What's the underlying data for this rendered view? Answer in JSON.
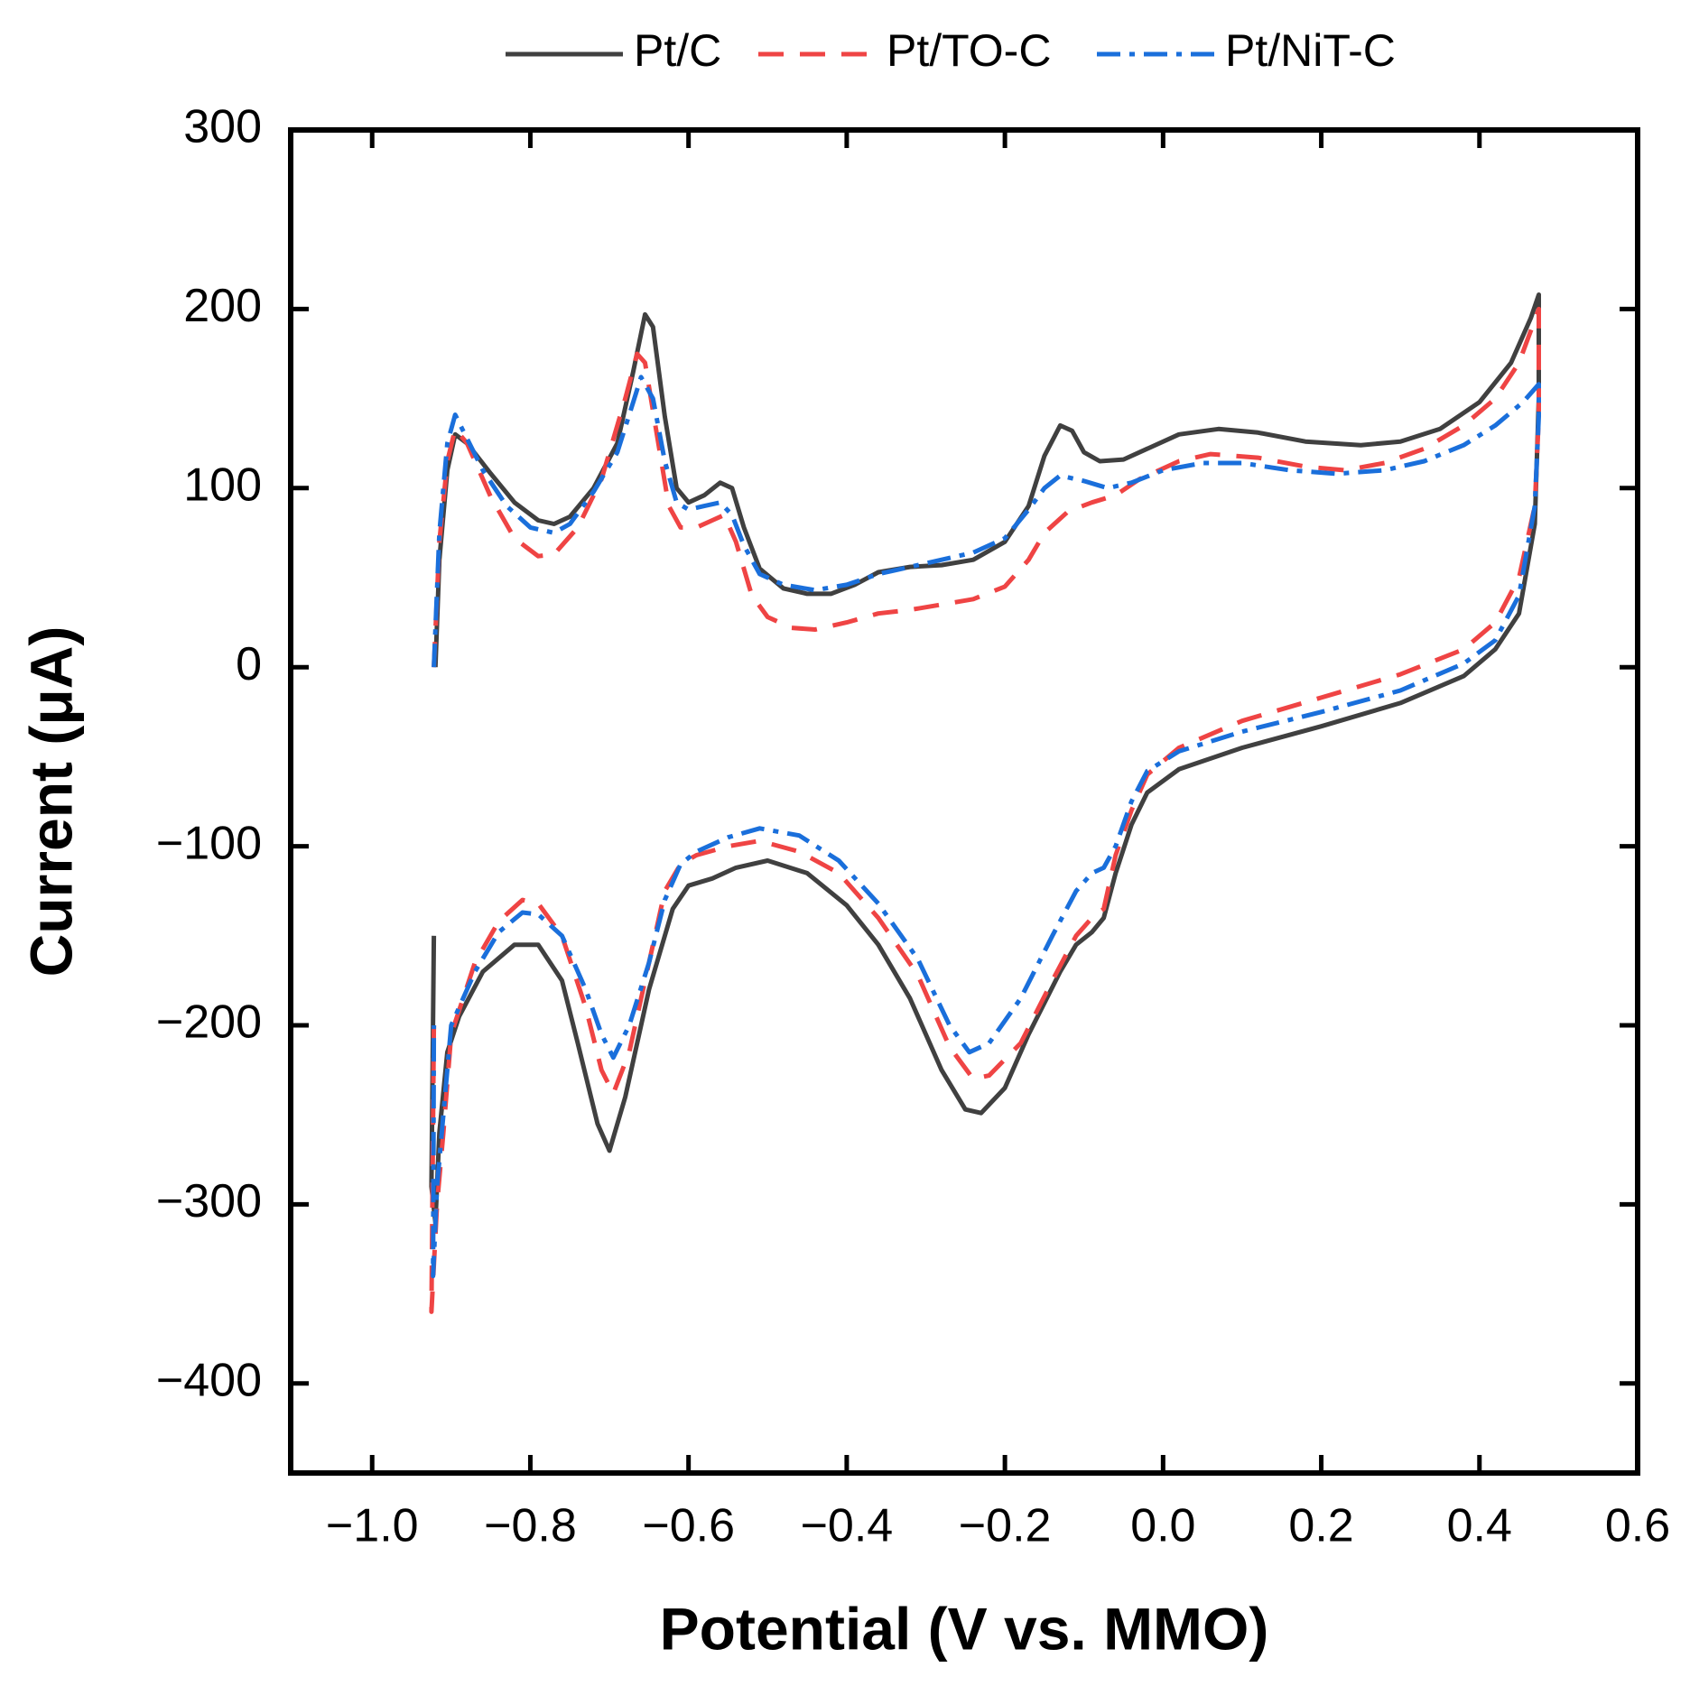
{
  "chart_data": {
    "type": "line",
    "xlabel": "Potential (V vs. MMO)",
    "ylabel": "Current (μA)",
    "xlim": [
      -1.103,
      0.6
    ],
    "ylim": [
      -450,
      300
    ],
    "xticks": [
      {
        "value": -1.0,
        "label": "−1.0"
      },
      {
        "value": -0.8,
        "label": "−0.8"
      },
      {
        "value": -0.6,
        "label": "−0.6"
      },
      {
        "value": -0.4,
        "label": "−0.4"
      },
      {
        "value": -0.2,
        "label": "−0.2"
      },
      {
        "value": 0,
        "label": "0.0"
      },
      0.2,
      0.4,
      0.6
    ],
    "yticks": [
      {
        "value": -400,
        "label": "−400"
      },
      {
        "value": -300,
        "label": "−300"
      },
      {
        "value": -200,
        "label": "−200"
      },
      {
        "value": -100,
        "label": "−100"
      },
      0,
      100,
      200,
      300
    ],
    "series": [
      {
        "name": "Pt/C",
        "color": "#404040",
        "dash": "none",
        "x": [
          -0.92,
          -0.915,
          -0.905,
          -0.895,
          -0.88,
          -0.85,
          -0.82,
          -0.79,
          -0.77,
          -0.75,
          -0.72,
          -0.69,
          -0.67,
          -0.655,
          -0.645,
          -0.63,
          -0.615,
          -0.6,
          -0.58,
          -0.56,
          -0.545,
          -0.53,
          -0.51,
          -0.48,
          -0.45,
          -0.42,
          -0.39,
          -0.36,
          -0.32,
          -0.28,
          -0.24,
          -0.2,
          -0.17,
          -0.15,
          -0.13,
          -0.115,
          -0.1,
          -0.08,
          -0.05,
          -0.02,
          0.02,
          0.07,
          0.12,
          0.18,
          0.25,
          0.3,
          0.35,
          0.4,
          0.44,
          0.465,
          0.475,
          0.475,
          0.47,
          0.45,
          0.42,
          0.38,
          0.3,
          0.2,
          0.1,
          0.02,
          -0.02,
          -0.04,
          -0.06,
          -0.075,
          -0.09,
          -0.11,
          -0.13,
          -0.17,
          -0.2,
          -0.23,
          -0.25,
          -0.28,
          -0.32,
          -0.36,
          -0.4,
          -0.45,
          -0.5,
          -0.54,
          -0.57,
          -0.6,
          -0.62,
          -0.65,
          -0.68,
          -0.7,
          -0.715,
          -0.74,
          -0.76,
          -0.79,
          -0.82,
          -0.86,
          -0.89,
          -0.905,
          -0.915,
          -0.92,
          -0.925,
          -0.922
        ],
        "values": [
          0,
          60,
          110,
          130,
          125,
          108,
          92,
          82,
          80,
          84,
          100,
          125,
          165,
          197,
          190,
          140,
          100,
          92,
          96,
          103,
          100,
          78,
          55,
          44,
          41,
          41,
          46,
          53,
          56,
          57,
          60,
          70,
          90,
          118,
          135,
          132,
          120,
          115,
          116,
          122,
          130,
          133,
          131,
          126,
          124,
          126,
          133,
          148,
          170,
          195,
          208,
          150,
          80,
          30,
          10,
          -5,
          -20,
          -33,
          -45,
          -57,
          -70,
          -88,
          -115,
          -140,
          -148,
          -155,
          -170,
          -205,
          -235,
          -249,
          -247,
          -225,
          -185,
          -155,
          -133,
          -115,
          -108,
          -112,
          -118,
          -122,
          -135,
          -180,
          -240,
          -270,
          -255,
          -210,
          -175,
          -155,
          -155,
          -170,
          -195,
          -215,
          -260,
          -310,
          -290,
          -150
        ]
      },
      {
        "name": "Pt/TO-C",
        "color": "#ef4444",
        "dash": "28 18",
        "x": [
          -0.922,
          -0.915,
          -0.905,
          -0.895,
          -0.88,
          -0.85,
          -0.82,
          -0.79,
          -0.77,
          -0.74,
          -0.71,
          -0.68,
          -0.665,
          -0.655,
          -0.64,
          -0.625,
          -0.61,
          -0.59,
          -0.57,
          -0.555,
          -0.54,
          -0.52,
          -0.5,
          -0.47,
          -0.44,
          -0.4,
          -0.36,
          -0.32,
          -0.28,
          -0.24,
          -0.2,
          -0.17,
          -0.15,
          -0.12,
          -0.09,
          -0.06,
          -0.03,
          0.02,
          0.06,
          0.12,
          0.18,
          0.23,
          0.28,
          0.33,
          0.38,
          0.42,
          0.45,
          0.475,
          0.475,
          0.47,
          0.45,
          0.42,
          0.38,
          0.3,
          0.2,
          0.1,
          0.02,
          -0.02,
          -0.04,
          -0.06,
          -0.075,
          -0.09,
          -0.11,
          -0.14,
          -0.18,
          -0.22,
          -0.24,
          -0.27,
          -0.31,
          -0.36,
          -0.41,
          -0.46,
          -0.51,
          -0.55,
          -0.59,
          -0.61,
          -0.63,
          -0.65,
          -0.675,
          -0.695,
          -0.71,
          -0.73,
          -0.76,
          -0.79,
          -0.81,
          -0.84,
          -0.87,
          -0.9,
          -0.91,
          -0.918,
          -0.925,
          -0.922
        ],
        "values": [
          0,
          70,
          115,
          133,
          125,
          95,
          72,
          62,
          63,
          78,
          105,
          150,
          175,
          170,
          130,
          90,
          78,
          78,
          82,
          85,
          70,
          40,
          28,
          22,
          21,
          25,
          30,
          32,
          35,
          38,
          45,
          60,
          75,
          87,
          92,
          96,
          105,
          115,
          119,
          117,
          112,
          110,
          114,
          122,
          135,
          150,
          170,
          200,
          140,
          90,
          50,
          25,
          10,
          -4,
          -17,
          -30,
          -45,
          -60,
          -80,
          -105,
          -135,
          -140,
          -150,
          -175,
          -210,
          -228,
          -230,
          -212,
          -172,
          -140,
          -115,
          -103,
          -97,
          -100,
          -105,
          -110,
          -125,
          -165,
          -215,
          -238,
          -225,
          -190,
          -150,
          -132,
          -130,
          -142,
          -165,
          -205,
          -260,
          -300,
          -360,
          -200
        ]
      },
      {
        "name": "Pt/NiT-C",
        "color": "#1a6fdb",
        "dash": "26 10 6 10",
        "x": [
          -0.922,
          -0.915,
          -0.905,
          -0.895,
          -0.885,
          -0.86,
          -0.83,
          -0.8,
          -0.77,
          -0.75,
          -0.72,
          -0.69,
          -0.67,
          -0.66,
          -0.645,
          -0.63,
          -0.615,
          -0.6,
          -0.58,
          -0.56,
          -0.545,
          -0.53,
          -0.51,
          -0.48,
          -0.44,
          -0.4,
          -0.36,
          -0.32,
          -0.28,
          -0.24,
          -0.2,
          -0.17,
          -0.15,
          -0.13,
          -0.1,
          -0.07,
          -0.04,
          0,
          0.05,
          0.1,
          0.16,
          0.22,
          0.28,
          0.33,
          0.38,
          0.42,
          0.455,
          0.475,
          0.475,
          0.47,
          0.45,
          0.42,
          0.38,
          0.3,
          0.2,
          0.1,
          0.02,
          -0.02,
          -0.04,
          -0.06,
          -0.075,
          -0.09,
          -0.11,
          -0.14,
          -0.18,
          -0.22,
          -0.245,
          -0.27,
          -0.31,
          -0.36,
          -0.41,
          -0.46,
          -0.51,
          -0.55,
          -0.59,
          -0.61,
          -0.63,
          -0.65,
          -0.675,
          -0.695,
          -0.71,
          -0.73,
          -0.76,
          -0.79,
          -0.81,
          -0.84,
          -0.87,
          -0.9,
          -0.91,
          -0.918,
          -0.923,
          -0.922
        ],
        "values": [
          0,
          75,
          125,
          141,
          132,
          110,
          90,
          78,
          75,
          80,
          98,
          120,
          148,
          162,
          150,
          115,
          92,
          88,
          90,
          92,
          85,
          68,
          52,
          46,
          43,
          46,
          52,
          56,
          60,
          64,
          72,
          88,
          100,
          107,
          104,
          100,
          103,
          110,
          114,
          114,
          110,
          108,
          110,
          115,
          124,
          135,
          148,
          158,
          140,
          90,
          40,
          15,
          2,
          -13,
          -25,
          -36,
          -47,
          -58,
          -75,
          -100,
          -112,
          -115,
          -125,
          -150,
          -185,
          -210,
          -215,
          -200,
          -163,
          -132,
          -108,
          -94,
          -90,
          -95,
          -103,
          -110,
          -130,
          -165,
          -200,
          -218,
          -205,
          -180,
          -150,
          -138,
          -137,
          -148,
          -170,
          -200,
          -250,
          -290,
          -340,
          -200
        ]
      }
    ]
  }
}
